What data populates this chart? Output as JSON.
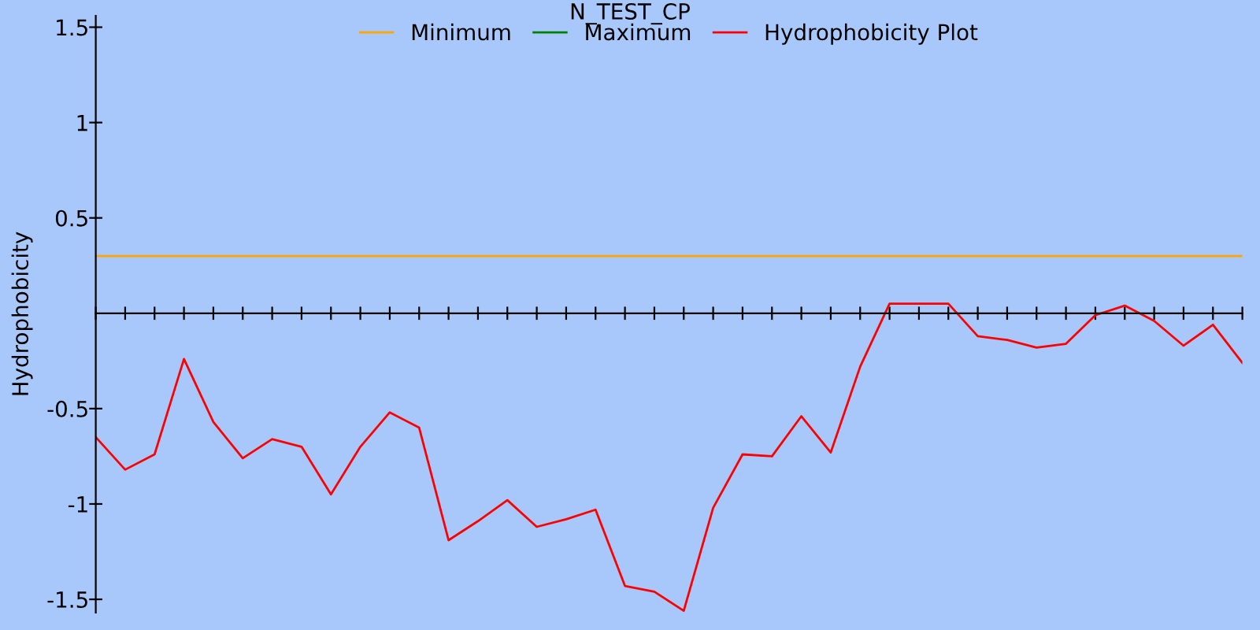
{
  "chart_data": {
    "type": "line",
    "title": "N_TEST_CP",
    "ylabel": "Hydrophobicity",
    "categories": [
      null,
      null,
      null,
      null,
      null,
      null,
      null,
      null,
      null,
      null,
      null,
      null,
      null,
      null,
      null,
      null,
      null,
      null,
      null,
      null,
      null,
      null,
      null,
      null,
      null,
      null,
      null,
      null,
      null,
      null,
      null,
      null,
      null,
      null,
      null,
      null,
      null,
      null,
      null,
      null
    ],
    "series": [
      {
        "name": "Minimum",
        "color": "#ffa500",
        "values": [
          0.3,
          0.3,
          0.3,
          0.3,
          0.3,
          0.3,
          0.3,
          0.3,
          0.3,
          0.3,
          0.3,
          0.3,
          0.3,
          0.3,
          0.3,
          0.3,
          0.3,
          0.3,
          0.3,
          0.3,
          0.3,
          0.3,
          0.3,
          0.3,
          0.3,
          0.3,
          0.3,
          0.3,
          0.3,
          0.3,
          0.3,
          0.3,
          0.3,
          0.3,
          0.3,
          0.3,
          0.3,
          0.3,
          0.3,
          0.3
        ]
      },
      {
        "name": "Maximum",
        "color": "#008000",
        "values": [
          null,
          null,
          null,
          null,
          null,
          null,
          null,
          null,
          null,
          null,
          null,
          null,
          null,
          null,
          null,
          null,
          null,
          null,
          null,
          null,
          null,
          null,
          null,
          null,
          null,
          null,
          null,
          null,
          null,
          null,
          null,
          null,
          null,
          null,
          null,
          null,
          null,
          null,
          null,
          null
        ]
      },
      {
        "name": "Hydrophobicity Plot",
        "color": "#ff0000",
        "values": [
          -0.65,
          -0.82,
          -0.74,
          -0.24,
          -0.57,
          -0.76,
          -0.66,
          -0.7,
          -0.95,
          -0.7,
          -0.52,
          -0.6,
          -1.19,
          -1.09,
          -0.98,
          -1.12,
          -1.08,
          -1.03,
          -1.43,
          -1.46,
          -1.56,
          -1.02,
          -0.74,
          -0.75,
          -0.54,
          -0.73,
          -0.28,
          0.05,
          0.05,
          0.05,
          -0.12,
          -0.14,
          -0.18,
          -0.16,
          -0.01,
          0.04,
          -0.04,
          -0.17,
          -0.06,
          -0.26
        ]
      }
    ],
    "ylim": [
      -1.57,
      1.56
    ],
    "yticks": [
      -1.5,
      -1,
      -0.5,
      0.5,
      1,
      1.5
    ],
    "grid": false,
    "legend": "top",
    "marker": "none",
    "line_style": "solid"
  }
}
